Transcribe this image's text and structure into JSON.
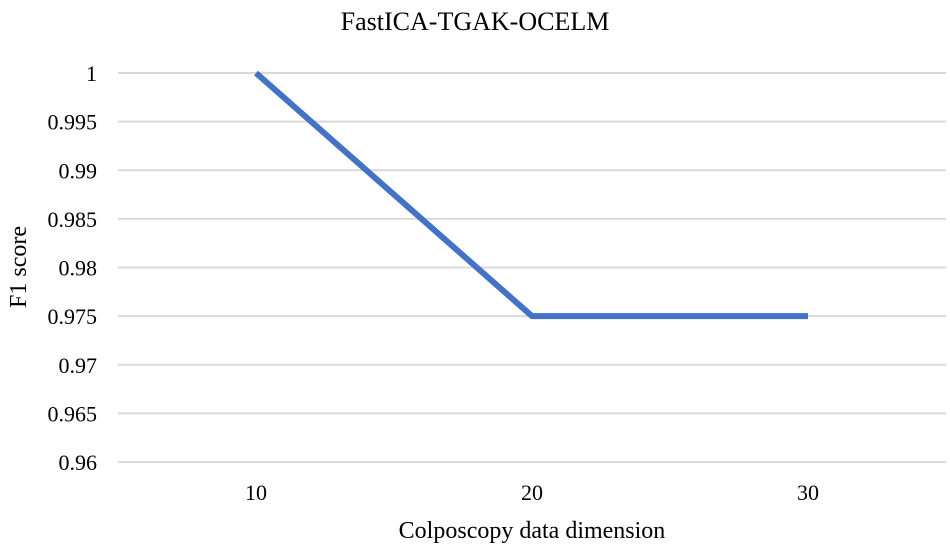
{
  "chart_data": {
    "type": "line",
    "title": "FastICA-TGAK-OCELM",
    "xlabel": "Colposcopy data dimension",
    "ylabel": "F1 score",
    "categories": [
      "10",
      "20",
      "30"
    ],
    "values": [
      1,
      0.975,
      0.975
    ],
    "ylim": [
      0.96,
      1
    ],
    "yticks": [
      "0.96",
      "0.965",
      "0.97",
      "0.975",
      "0.98",
      "0.985",
      "0.99",
      "0.995",
      "1"
    ],
    "grid": true,
    "line_color": "#4472C4",
    "grid_color": "#D9D9D9"
  }
}
